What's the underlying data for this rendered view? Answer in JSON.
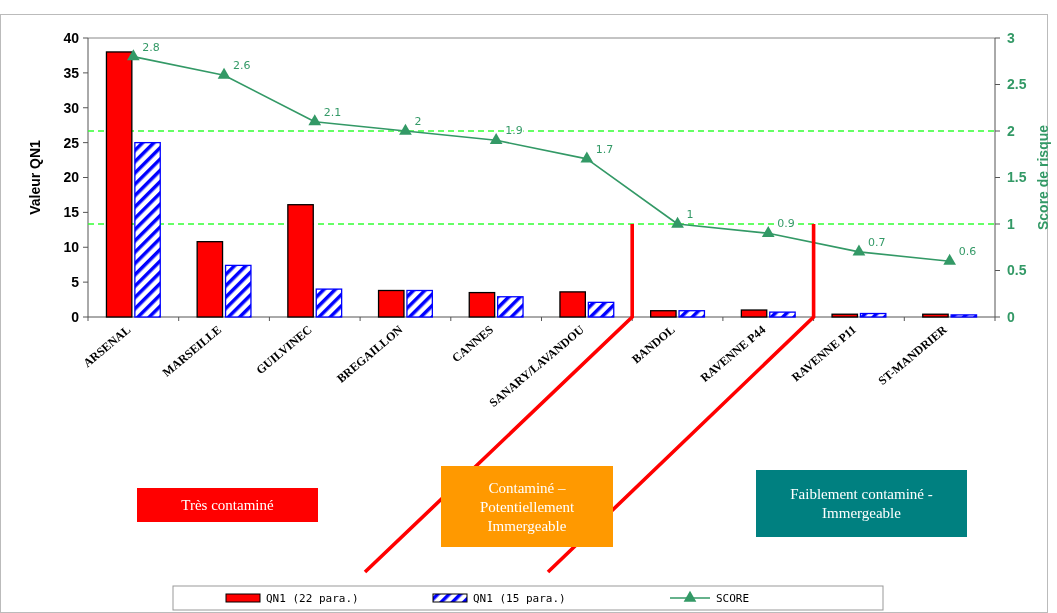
{
  "chart_data": {
    "type": "bar",
    "categories": [
      "ARSENAL",
      "MARSEILLE",
      "GUILVINEC",
      "BREGAILLON",
      "CANNES",
      "SANARY/LAVANDOU",
      "BANDOL",
      "RAVENNE P44",
      "RAVENNE P11",
      "ST-MANDRIER"
    ],
    "series": [
      {
        "name": "QN1 (22 para.)",
        "color": "#ff0000",
        "values": [
          38,
          10.8,
          16.1,
          3.8,
          3.5,
          3.6,
          0.9,
          1.0,
          0.4,
          0.4
        ]
      },
      {
        "name": "QN1 (15 para.)",
        "color": "#0000ff",
        "values": [
          25,
          7.4,
          4.0,
          3.8,
          2.9,
          2.1,
          0.9,
          0.7,
          0.5,
          0.3
        ]
      },
      {
        "name": "SCORE",
        "type": "line",
        "axis": "y2",
        "color": "#339966",
        "marker": "triangle",
        "values": [
          2.8,
          2.6,
          2.1,
          2,
          1.9,
          1.7,
          1,
          0.9,
          0.7,
          0.6
        ],
        "value_labels": [
          "2.8",
          "2.6",
          "2.1",
          "2",
          "1.9",
          "1.7",
          "1",
          "0.9",
          "0.7",
          "0.6"
        ]
      }
    ],
    "ylabel": "Valeur QN1",
    "y2label": "Score de risque",
    "ylim": [
      0,
      40
    ],
    "yticks": [
      0,
      5,
      10,
      15,
      20,
      25,
      30,
      35,
      40
    ],
    "y2lim": [
      0,
      3
    ],
    "y2ticks": [
      0,
      0.5,
      1,
      1.5,
      2,
      2.5,
      3
    ],
    "ref_lines": [
      {
        "axis": "y2",
        "value": 2,
        "color": "#33ff33",
        "line_style": "dashed"
      },
      {
        "axis": "y2",
        "value": 1,
        "color": "#33ff33",
        "line_style": "dashed"
      }
    ],
    "annotations": [
      "Très contaminé",
      "Contaminé – Potentiellement Immergeable",
      "Faiblement contaminé - Immergeable"
    ],
    "legend": "bottom",
    "grid": false
  }
}
